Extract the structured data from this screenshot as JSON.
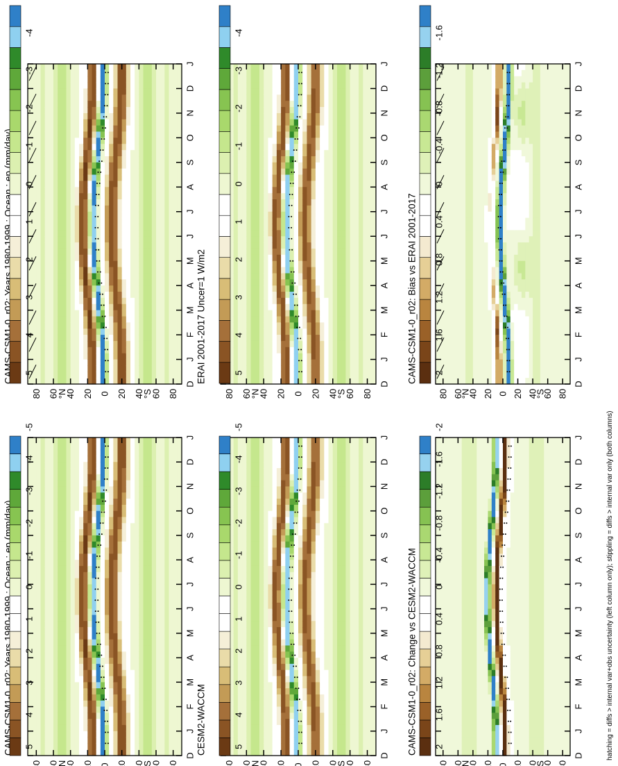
{
  "figure": {
    "footnote": "hatching = diffs > internal var+obs uncertainty (left column only); stippling = diffs > internal var only (both columns)"
  },
  "colors": {
    "full_scale": [
      "#6b3a14",
      "#8a5424",
      "#a5703a",
      "#c39b56",
      "#d8bd77",
      "#eadca9",
      "#f5efd8",
      "#ffffff",
      "#ffffff",
      "#eef7d2",
      "#dcf0b0",
      "#c5e78d",
      "#a9d86c",
      "#87c451",
      "#5fa83a",
      "#2f8a2a",
      "#8fd0f0",
      "#2f80c8"
    ],
    "diff_scale": [
      "#5b2f10",
      "#7a4519",
      "#9a6128",
      "#b9853f",
      "#d3ab66",
      "#e6cf96",
      "#f4ead0",
      "#ffffff",
      "#ffffff",
      "#f0f8da",
      "#dff1b8",
      "#c8e894",
      "#aad871",
      "#86c252",
      "#5c9f3b",
      "#2c7d28",
      "#96d2ef",
      "#2f80c8"
    ],
    "stipple": "#000000",
    "hatch": "#000000"
  },
  "chart_data": [
    {
      "type": "heatmap",
      "panel": "top-left",
      "title": "CAMS-CSM1-0_r02: Years 1980-1999 : Ocean : ep (mm/day)",
      "xlabel": "month",
      "x_ticks": [
        "D",
        "J",
        "F",
        "M",
        "A",
        "M",
        "J",
        "J",
        "A",
        "S",
        "O",
        "N",
        "D",
        "J"
      ],
      "y_ticks": [
        "80",
        "60",
        "40",
        "20",
        "0",
        "20",
        "40",
        "60",
        "80"
      ],
      "y_hemi_labels": [
        "°N",
        "°S"
      ],
      "colorbar_labels": [
        "5",
        "4",
        "3",
        "2",
        "1",
        "0",
        "-1",
        "-2",
        "-3",
        "-4",
        "-5"
      ],
      "scale": "full",
      "field": "model",
      "hatching": true,
      "stippling": true
    },
    {
      "type": "heatmap",
      "panel": "top-right",
      "title": "CAMS-CSM1-0_r02: Years 1980-1999 : Ocean : ep (mm/day)",
      "xlabel": "month",
      "x_ticks": [
        "D",
        "J",
        "F",
        "M",
        "A",
        "M",
        "J",
        "J",
        "A",
        "S",
        "O",
        "N",
        "D",
        "J"
      ],
      "y_ticks": [
        "80",
        "60",
        "40",
        "20",
        "0",
        "20",
        "40",
        "60",
        "80"
      ],
      "y_hemi_labels": [
        "°N",
        "°S"
      ],
      "colorbar_labels": [
        "5",
        "4",
        "3",
        "2",
        "1",
        "0",
        "-1",
        "-2",
        "-3",
        "-4",
        "-5"
      ],
      "scale": "full",
      "field": "model",
      "hatching": false,
      "stippling": true
    },
    {
      "type": "heatmap",
      "panel": "middle-left",
      "title": "ERAI 2001-2017 Uncer=1 W/m2",
      "xlabel": "month",
      "x_ticks": [
        "D",
        "J",
        "F",
        "M",
        "A",
        "M",
        "J",
        "J",
        "A",
        "S",
        "O",
        "N",
        "D",
        "J"
      ],
      "y_ticks": [
        "80",
        "60",
        "40",
        "20",
        "0",
        "20",
        "40",
        "60",
        "80"
      ],
      "y_hemi_labels": [
        "°N",
        "°S"
      ],
      "colorbar_labels": [
        "5",
        "4",
        "3",
        "2",
        "1",
        "0",
        "-1",
        "-2",
        "-3",
        "-4",
        "-5"
      ],
      "scale": "full",
      "field": "reference",
      "hatching": true,
      "stippling": true
    },
    {
      "type": "heatmap",
      "panel": "middle-right",
      "title": "CESM2-WACCM",
      "xlabel": "month",
      "x_ticks": [
        "D",
        "J",
        "F",
        "M",
        "A",
        "M",
        "J",
        "J",
        "A",
        "S",
        "O",
        "N",
        "D",
        "J"
      ],
      "y_ticks": [
        "80",
        "60",
        "40",
        "20",
        "0",
        "20",
        "40",
        "60",
        "80"
      ],
      "y_hemi_labels": [
        "°N",
        "°S"
      ],
      "colorbar_labels": [
        "5",
        "4",
        "3",
        "2",
        "1",
        "0",
        "-1",
        "-2",
        "-3",
        "-4",
        "-5"
      ],
      "scale": "full",
      "field": "reference",
      "hatching": false,
      "stippling": true
    },
    {
      "type": "heatmap",
      "panel": "bottom-left",
      "title": "CAMS-CSM1-0_r02: Bias vs ERAI 2001-2017",
      "xlabel": "month",
      "x_ticks": [
        "D",
        "J",
        "F",
        "M",
        "A",
        "M",
        "J",
        "J",
        "A",
        "S",
        "O",
        "N",
        "D",
        "J"
      ],
      "y_ticks": [
        "80",
        "60",
        "40",
        "20",
        "0",
        "20",
        "40",
        "60",
        "80"
      ],
      "y_hemi_labels": [
        "°N",
        "°S"
      ],
      "colorbar_labels": [
        "2",
        "1.6",
        "1.2",
        "0.8",
        "0.4",
        "0",
        "-0.4",
        "-0.8",
        "-1.2",
        "-1.6",
        "-2"
      ],
      "scale": "diff",
      "field": "difference",
      "hatching": true,
      "stippling": true
    },
    {
      "type": "heatmap",
      "panel": "bottom-right",
      "title": "CAMS-CSM1-0_r02: Change vs CESM2-WACCM",
      "xlabel": "month",
      "x_ticks": [
        "D",
        "J",
        "F",
        "M",
        "A",
        "M",
        "J",
        "J",
        "A",
        "S",
        "O",
        "N",
        "D",
        "J"
      ],
      "y_ticks": [
        "80",
        "60",
        "40",
        "20",
        "0",
        "20",
        "40",
        "60",
        "80"
      ],
      "y_hemi_labels": [
        "°N",
        "°S"
      ],
      "colorbar_labels": [
        "2",
        "1.6",
        "1.2",
        "0.8",
        "0.4",
        "0",
        "-0.4",
        "-0.8",
        "-1.2",
        "-1.6",
        "-2"
      ],
      "scale": "diff",
      "field": "change",
      "hatching": false,
      "stippling": true
    }
  ]
}
